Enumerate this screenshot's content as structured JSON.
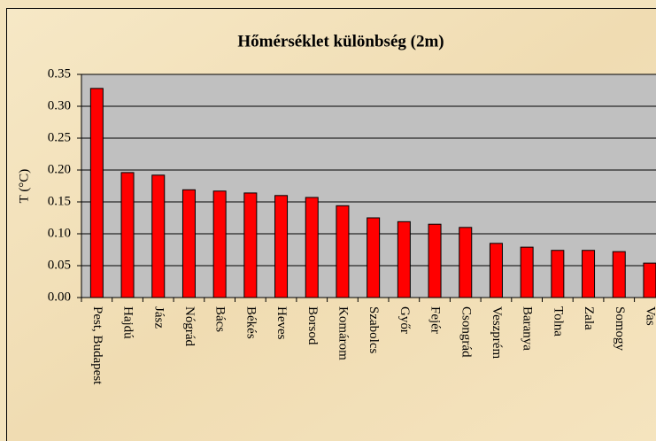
{
  "chart_data": {
    "type": "bar",
    "title": "Hőmérséklet különbség (2m)",
    "y_label": "T (°C)",
    "categories": [
      "Pest, Budapest",
      "Hajdú",
      "Jász",
      "Nógrád",
      "Bács",
      "Békés",
      "Heves",
      "Borsod",
      "Komárom",
      "Szabolcs",
      "Győr",
      "Fejér",
      "Csongrád",
      "Veszprém",
      "Baranya",
      "Tolna",
      "Zala",
      "Somogy",
      "Vas"
    ],
    "values": [
      0.328,
      0.196,
      0.192,
      0.169,
      0.167,
      0.164,
      0.16,
      0.157,
      0.144,
      0.125,
      0.119,
      0.115,
      0.11,
      0.085,
      0.079,
      0.074,
      0.074,
      0.072,
      0.054
    ],
    "color": "#ff0000",
    "ylim": [
      0,
      0.35
    ],
    "yticks": [
      {
        "value": 0,
        "label": "0.00"
      },
      {
        "value": 0.05,
        "label": "0.05"
      },
      {
        "value": 0.1,
        "label": "0.10"
      },
      {
        "value": 0.15,
        "label": "0.15"
      },
      {
        "value": 0.2,
        "label": "0.20"
      },
      {
        "value": 0.25,
        "label": "0.25"
      },
      {
        "value": 0.3,
        "label": "0.30"
      },
      {
        "value": 0.35,
        "label": "0.35"
      }
    ],
    "grid": true
  }
}
